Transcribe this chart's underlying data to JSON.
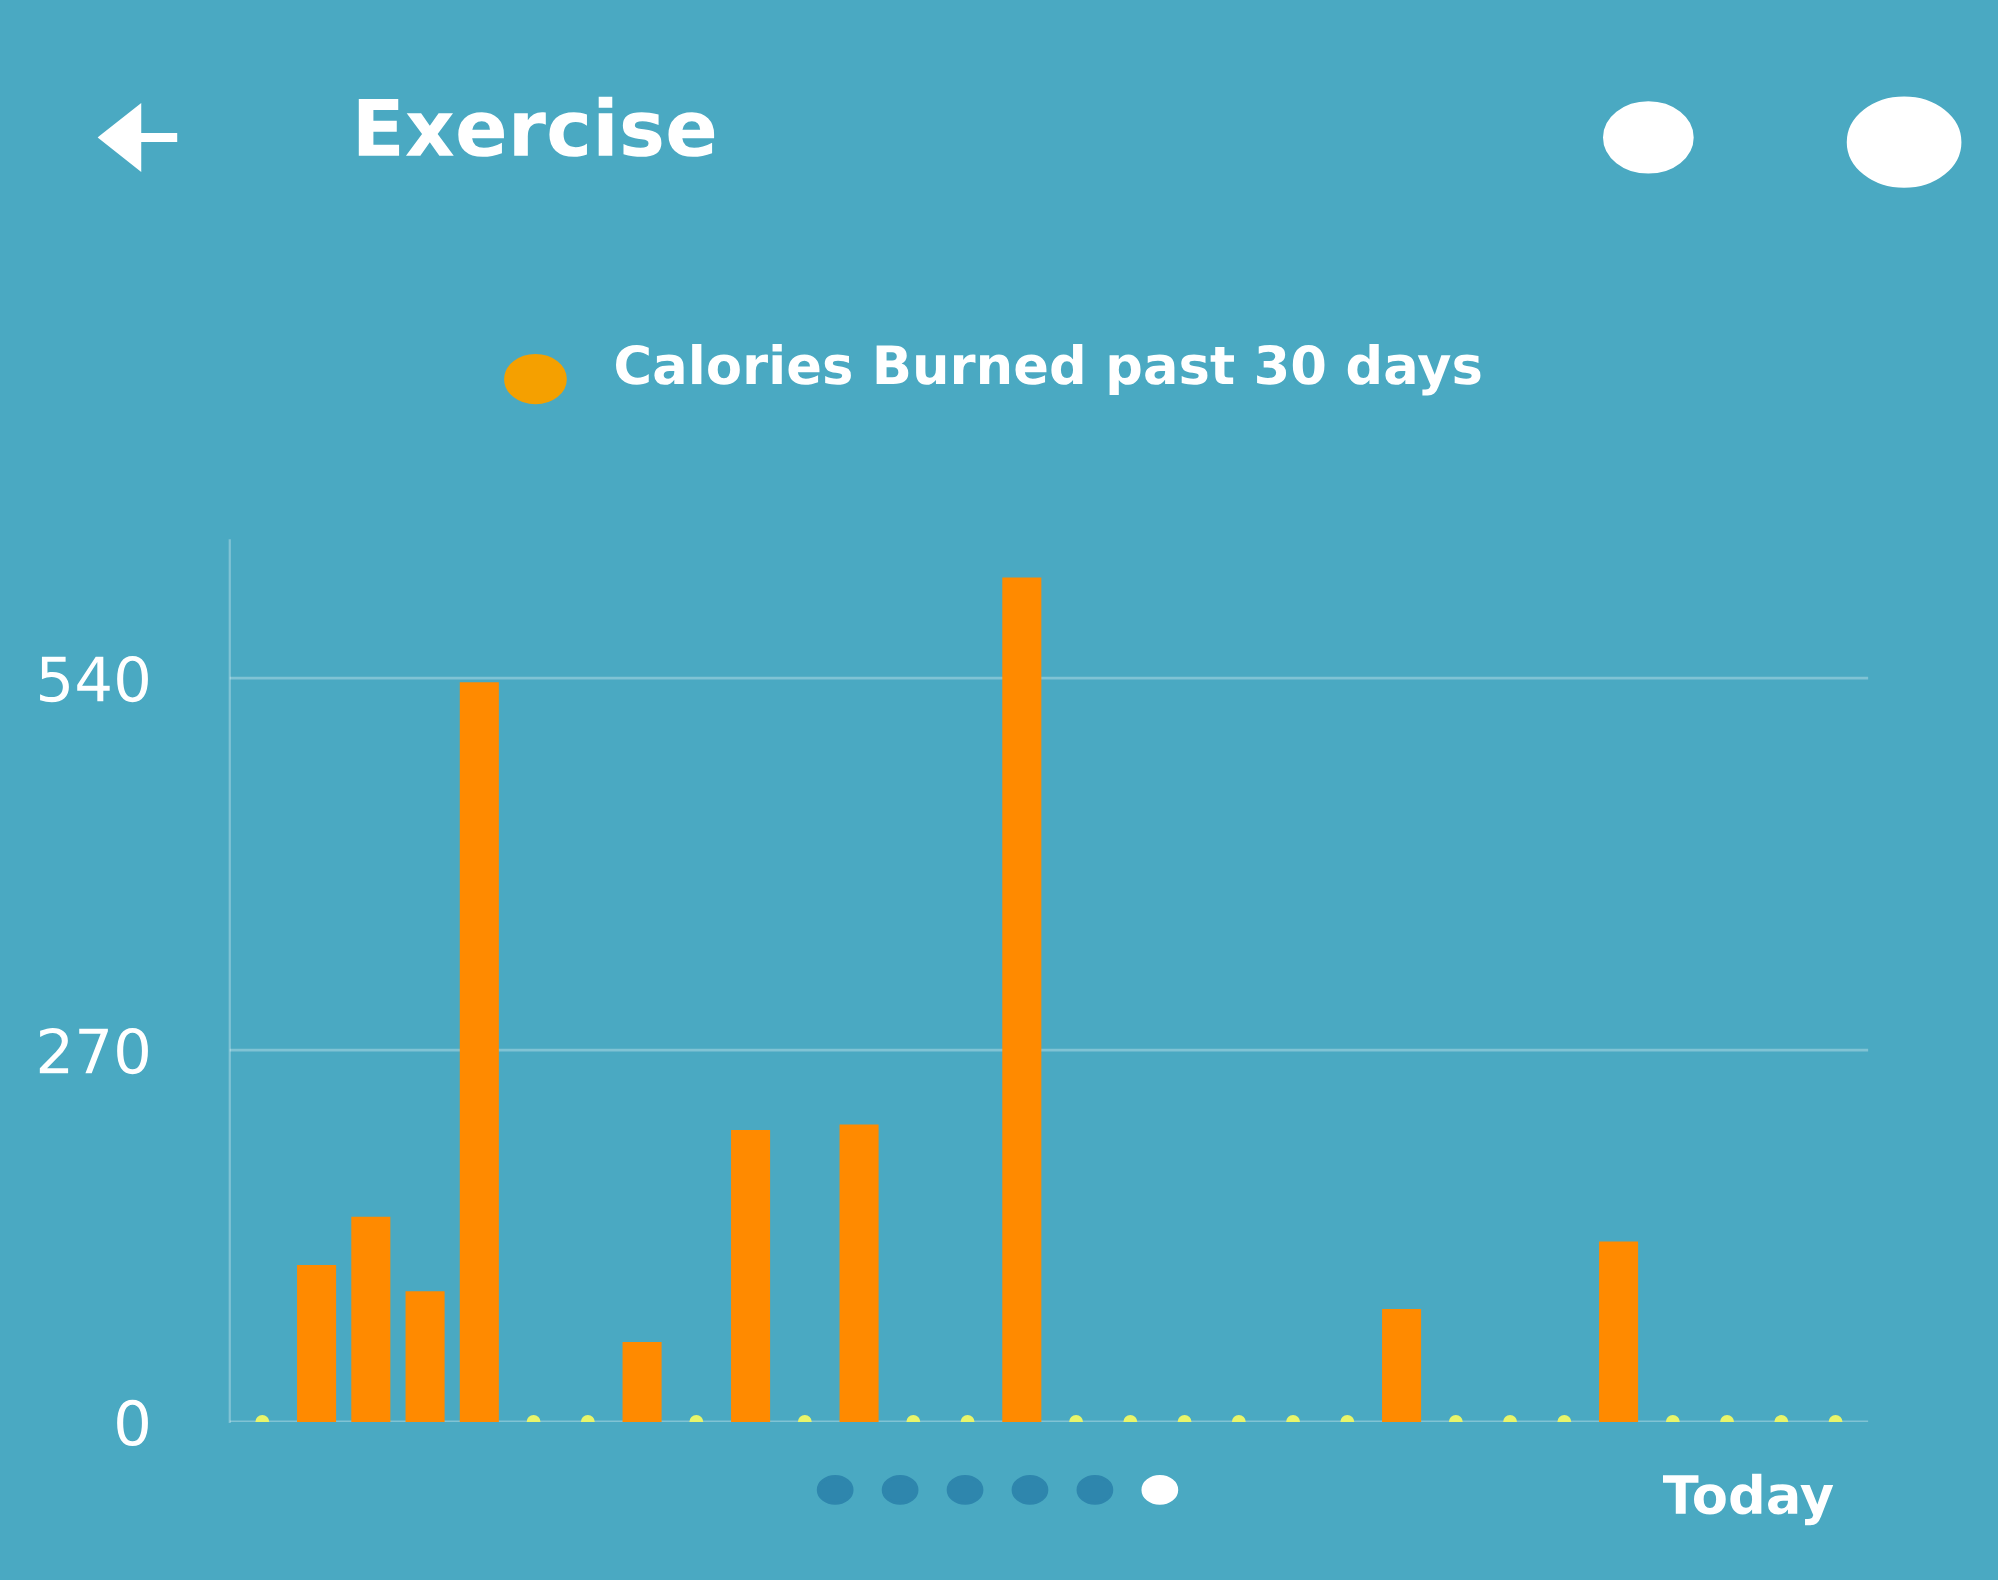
{
  "chart_data": {
    "type": "bar",
    "title": "Exercise",
    "subtitle": "Calories Burned past 30 days",
    "categories": [
      null,
      null,
      null,
      null,
      null,
      null,
      null,
      null,
      null,
      null,
      null,
      null,
      null,
      null,
      null,
      null,
      null,
      null,
      null,
      null,
      null,
      null,
      null,
      null,
      null,
      null,
      null,
      null,
      null,
      null
    ],
    "values": [
      0,
      114,
      149,
      95,
      537,
      0,
      0,
      58,
      0,
      212,
      0,
      216,
      0,
      0,
      613,
      0,
      0,
      0,
      0,
      0,
      0,
      82,
      0,
      0,
      0,
      131,
      0,
      0,
      0,
      0
    ],
    "color": "#ff8a00",
    "ylim": [
      0,
      640
    ],
    "yticks": [
      0,
      270,
      540
    ],
    "grid": "y",
    "tick_labels": "y",
    "annotations": [
      "Today"
    ]
  }
}
